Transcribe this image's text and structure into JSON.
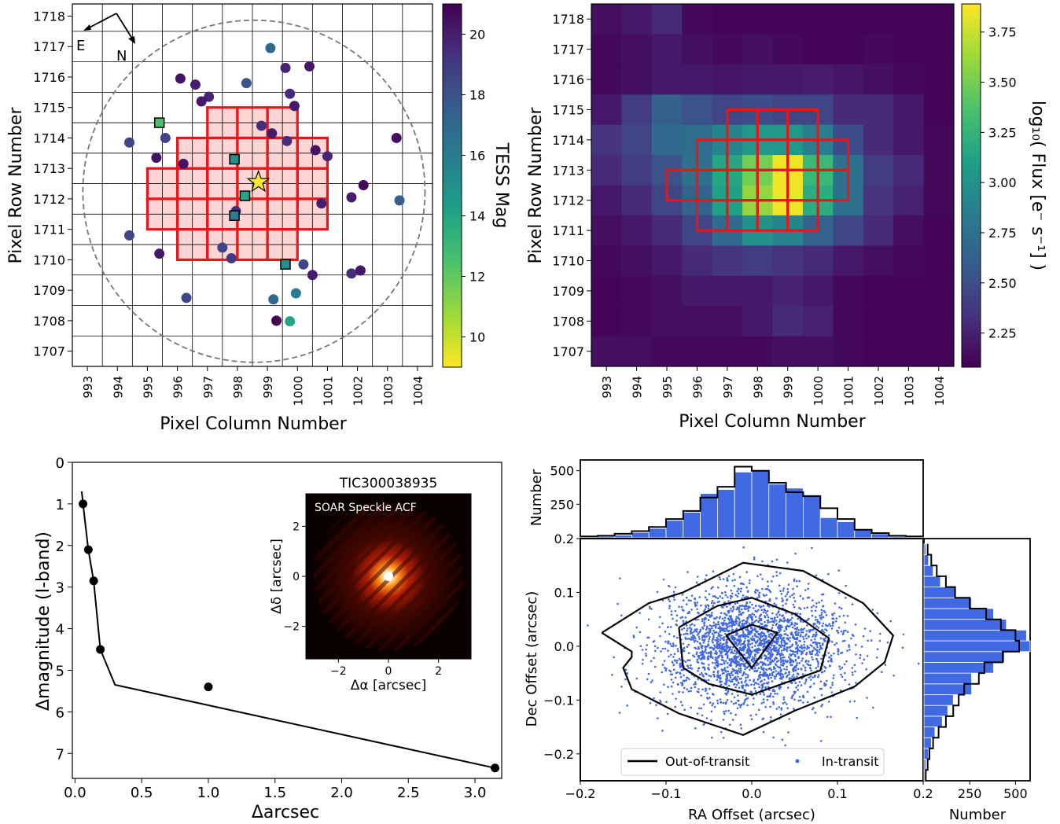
{
  "chart_data": [
    {
      "type": "scatter",
      "panel": "top-left",
      "xlabel": "Pixel Column Number",
      "ylabel": "Pixel Row Number",
      "xticks": [
        993,
        994,
        995,
        996,
        997,
        998,
        999,
        1000,
        1001,
        1002,
        1003,
        1004
      ],
      "yticks": [
        1707,
        1708,
        1709,
        1710,
        1711,
        1712,
        1713,
        1714,
        1715,
        1716,
        1717,
        1718
      ],
      "xlim": [
        992.5,
        1004.5
      ],
      "ylim": [
        1706.5,
        1718.4
      ],
      "grid": true,
      "compass": {
        "east_label": "E",
        "north_label": "N"
      },
      "colorbar": {
        "label": "TESS Mag",
        "ticks": [
          10,
          12,
          14,
          16,
          18,
          20
        ],
        "range": [
          9,
          21
        ],
        "reversed": true
      },
      "aperture_pixels": [
        [
          997.5,
          1714.5
        ],
        [
          998.5,
          1714.5
        ],
        [
          999.5,
          1714.5
        ],
        [
          996.5,
          1713.5
        ],
        [
          997.5,
          1713.5
        ],
        [
          998.5,
          1713.5
        ],
        [
          999.5,
          1713.5
        ],
        [
          1000.5,
          1713.5
        ],
        [
          995.5,
          1712.5
        ],
        [
          996.5,
          1712.5
        ],
        [
          997.5,
          1712.5
        ],
        [
          998.5,
          1712.5
        ],
        [
          999.5,
          1712.5
        ],
        [
          1000.5,
          1712.5
        ],
        [
          995.5,
          1711.5
        ],
        [
          996.5,
          1711.5
        ],
        [
          997.5,
          1711.5
        ],
        [
          998.5,
          1711.5
        ],
        [
          999.5,
          1711.5
        ],
        [
          1000.5,
          1711.5
        ],
        [
          996.5,
          1710.5
        ],
        [
          997.5,
          1710.5
        ],
        [
          998.5,
          1710.5
        ],
        [
          999.5,
          1710.5
        ]
      ],
      "target": {
        "x": 998.7,
        "y": 1712.55,
        "mag": 10
      },
      "search_circle": {
        "cx": 998.55,
        "cy": 1712.25,
        "radius": 5.7
      },
      "stars": [
        {
          "x": 999.1,
          "y": 1716.95,
          "mag": 17
        },
        {
          "x": 999.6,
          "y": 1716.3,
          "mag": 19.8
        },
        {
          "x": 1000.4,
          "y": 1716.35,
          "mag": 20.2
        },
        {
          "x": 996.1,
          "y": 1715.95,
          "mag": 20.4
        },
        {
          "x": 996.6,
          "y": 1715.75,
          "mag": 20
        },
        {
          "x": 997.05,
          "y": 1715.35,
          "mag": 19.8
        },
        {
          "x": 996.8,
          "y": 1715.2,
          "mag": 20.2
        },
        {
          "x": 998.3,
          "y": 1715.8,
          "mag": 18
        },
        {
          "x": 999.75,
          "y": 1715.45,
          "mag": 19.5
        },
        {
          "x": 999.9,
          "y": 1715.05,
          "mag": 20.2
        },
        {
          "x": 998.8,
          "y": 1714.4,
          "mag": 19.5
        },
        {
          "x": 999.15,
          "y": 1714.15,
          "mag": 20.2
        },
        {
          "x": 999.65,
          "y": 1713.9,
          "mag": 19.5
        },
        {
          "x": 1000.6,
          "y": 1713.6,
          "mag": 20.4
        },
        {
          "x": 1001.0,
          "y": 1713.4,
          "mag": 19.8
        },
        {
          "x": 995.6,
          "y": 1714.0,
          "mag": 18.5
        },
        {
          "x": 994.4,
          "y": 1713.85,
          "mag": 18.5
        },
        {
          "x": 995.3,
          "y": 1713.35,
          "mag": 20.4
        },
        {
          "x": 996.2,
          "y": 1713.15,
          "mag": 20.4
        },
        {
          "x": 1003.3,
          "y": 1714.0,
          "mag": 20.6
        },
        {
          "x": 1002.2,
          "y": 1712.45,
          "mag": 20.8
        },
        {
          "x": 1001.8,
          "y": 1712.05,
          "mag": 20
        },
        {
          "x": 1003.4,
          "y": 1711.95,
          "mag": 17.5
        },
        {
          "x": 1000.8,
          "y": 1711.85,
          "mag": 20
        },
        {
          "x": 997.95,
          "y": 1711.6,
          "mag": 19.5
        },
        {
          "x": 994.4,
          "y": 1710.8,
          "mag": 18.5
        },
        {
          "x": 995.4,
          "y": 1710.2,
          "mag": 20.2
        },
        {
          "x": 997.5,
          "y": 1710.4,
          "mag": 18.5
        },
        {
          "x": 997.8,
          "y": 1710.05,
          "mag": 19
        },
        {
          "x": 1000.2,
          "y": 1709.85,
          "mag": 18.5
        },
        {
          "x": 1000.5,
          "y": 1709.5,
          "mag": 20
        },
        {
          "x": 1001.8,
          "y": 1709.55,
          "mag": 19.5
        },
        {
          "x": 1002.1,
          "y": 1709.65,
          "mag": 20.2
        },
        {
          "x": 999.2,
          "y": 1708.7,
          "mag": 17
        },
        {
          "x": 999.95,
          "y": 1708.9,
          "mag": 16
        },
        {
          "x": 996.3,
          "y": 1708.75,
          "mag": 18.5
        },
        {
          "x": 999.3,
          "y": 1708.0,
          "mag": 21
        },
        {
          "x": 999.75,
          "y": 1707.98,
          "mag": 14
        }
      ],
      "square_stars": [
        {
          "x": 995.4,
          "y": 1714.5,
          "mag": 12.5
        },
        {
          "x": 997.9,
          "y": 1713.3,
          "mag": 15
        },
        {
          "x": 998.25,
          "y": 1712.1,
          "mag": 14
        },
        {
          "x": 997.9,
          "y": 1711.45,
          "mag": 16
        },
        {
          "x": 999.6,
          "y": 1709.85,
          "mag": 15
        }
      ]
    },
    {
      "type": "heatmap",
      "panel": "top-right",
      "xlabel": "Pixel Column Number",
      "ylabel": "Pixel Row Number",
      "xticks": [
        993,
        994,
        995,
        996,
        997,
        998,
        999,
        1000,
        1001,
        1002,
        1003,
        1004
      ],
      "yticks": [
        1707,
        1708,
        1709,
        1710,
        1711,
        1712,
        1713,
        1714,
        1715,
        1716,
        1717,
        1718
      ],
      "x_range": [
        992.5,
        1004.5
      ],
      "y_range": [
        1706.5,
        1718.5
      ],
      "colorbar": {
        "label": "log₁₀( Flux [e⁻ s⁻¹] )",
        "ticks": [
          2.25,
          2.5,
          2.75,
          3.0,
          3.25,
          3.5,
          3.75
        ],
        "ticklabels": [
          "2.25",
          "2.50",
          "2.75",
          "3.00",
          "3.25",
          "3.50",
          "3.75"
        ],
        "range": [
          2.08,
          3.89
        ]
      },
      "rows_top_to_bottom": [
        [
          2.15,
          2.2,
          2.3,
          2.12,
          2.1,
          2.1,
          2.1,
          2.1,
          2.1,
          2.1,
          2.1,
          2.1
        ],
        [
          2.12,
          2.15,
          2.2,
          2.15,
          2.12,
          2.15,
          2.12,
          2.1,
          2.1,
          2.12,
          2.1,
          2.1
        ],
        [
          2.12,
          2.15,
          2.2,
          2.2,
          2.18,
          2.2,
          2.2,
          2.22,
          2.18,
          2.15,
          2.12,
          2.1
        ],
        [
          2.2,
          2.4,
          2.62,
          2.55,
          2.45,
          2.5,
          2.45,
          2.45,
          2.3,
          2.3,
          2.2,
          2.1
        ],
        [
          2.35,
          2.45,
          2.7,
          2.72,
          2.9,
          3.05,
          3.05,
          2.85,
          2.5,
          2.3,
          2.2,
          2.12
        ],
        [
          2.3,
          2.4,
          2.55,
          2.75,
          3.15,
          3.5,
          3.85,
          3.3,
          2.75,
          2.4,
          2.3,
          2.12
        ],
        [
          2.2,
          2.3,
          2.45,
          2.65,
          3.1,
          3.6,
          3.85,
          3.2,
          2.75,
          2.35,
          2.25,
          2.12
        ],
        [
          2.15,
          2.2,
          2.3,
          2.45,
          2.7,
          3.0,
          2.9,
          2.65,
          2.45,
          2.3,
          2.15,
          2.1
        ],
        [
          2.12,
          2.15,
          2.2,
          2.3,
          2.35,
          2.4,
          2.35,
          2.3,
          2.2,
          2.15,
          2.12,
          2.1
        ],
        [
          2.1,
          2.12,
          2.15,
          2.2,
          2.2,
          2.2,
          2.25,
          2.2,
          2.12,
          2.1,
          2.1,
          2.1
        ],
        [
          2.1,
          2.12,
          2.15,
          2.15,
          2.15,
          2.2,
          2.3,
          2.25,
          2.12,
          2.1,
          2.1,
          2.1
        ],
        [
          2.15,
          2.15,
          2.12,
          2.12,
          2.12,
          2.12,
          2.15,
          2.15,
          2.12,
          2.1,
          2.1,
          2.1
        ]
      ],
      "aperture_pixels": [
        [
          997.5,
          1714.5
        ],
        [
          998.5,
          1714.5
        ],
        [
          999.5,
          1714.5
        ],
        [
          996.5,
          1713.5
        ],
        [
          997.5,
          1713.5
        ],
        [
          998.5,
          1713.5
        ],
        [
          999.5,
          1713.5
        ],
        [
          1000.5,
          1713.5
        ],
        [
          995.5,
          1712.5
        ],
        [
          996.5,
          1712.5
        ],
        [
          997.5,
          1712.5
        ],
        [
          998.5,
          1712.5
        ],
        [
          999.5,
          1712.5
        ],
        [
          1000.5,
          1712.5
        ],
        [
          996.5,
          1711.5
        ],
        [
          997.5,
          1711.5
        ],
        [
          998.5,
          1711.5
        ],
        [
          999.5,
          1711.5
        ]
      ]
    },
    {
      "type": "line",
      "panel": "bottom-left",
      "xlabel": "Δarcsec",
      "ylabel": "Δmagnitude (I-band)",
      "xticks": [
        0.0,
        0.5,
        1.0,
        1.5,
        2.0,
        2.5,
        3.0
      ],
      "xticklabels": [
        "0.0",
        "0.5",
        "1.0",
        "1.5",
        "2.0",
        "2.5",
        "3.0"
      ],
      "yticks": [
        0,
        1,
        2,
        3,
        4,
        5,
        6,
        7
      ],
      "xlim": [
        -0.02,
        3.2
      ],
      "ylim": [
        7.6,
        0
      ],
      "curve": {
        "x": [
          0.05,
          0.06,
          0.1,
          0.14,
          0.19,
          0.3,
          3.15
        ],
        "y": [
          0.7,
          1.0,
          2.1,
          2.85,
          4.5,
          5.35,
          7.35
        ]
      },
      "points": {
        "x": [
          0.06,
          0.1,
          0.14,
          0.19,
          1.0,
          3.15
        ],
        "y": [
          1.0,
          2.1,
          2.85,
          4.5,
          5.4,
          7.35
        ]
      },
      "inset": {
        "title": "TIC300038935",
        "label": "SOAR Speckle ACF",
        "xlabel": "Δα [arcsec]",
        "ylabel": "Δδ [arcsec]",
        "ticks": [
          -2,
          0,
          2
        ],
        "range": [
          -3.3,
          3.3
        ]
      }
    },
    {
      "type": "scatter",
      "panel": "bottom-right",
      "xlabel": "RA Offset (arcsec)",
      "ylabel": "Dec Offset (arcsec)",
      "xticks": [
        -0.2,
        -0.1,
        0.0,
        0.1,
        0.2
      ],
      "xticklabels": [
        "−0.2",
        "−0.1",
        "0.0",
        "0.1",
        "0.2"
      ],
      "yticks": [
        -0.2,
        -0.1,
        0.0,
        0.1,
        0.2
      ],
      "yticklabels": [
        "−0.2",
        "−0.1",
        "0.0",
        "0.1",
        "0.2"
      ],
      "xlim": [
        -0.2,
        0.2
      ],
      "ylim": [
        -0.25,
        0.2
      ],
      "legend": {
        "location": "bottom-center",
        "entries": [
          {
            "label": "Out-of-transit",
            "style": "line"
          },
          {
            "label": "In-transit",
            "style": "point"
          }
        ]
      },
      "in_transit_scatter": {
        "center": [
          0.0,
          0.0
        ],
        "sigma_ra": 0.055,
        "sigma_dec": 0.055,
        "count": 2600
      },
      "contours_out_of_transit": [
        {
          "x": [
            -0.03,
            0.0,
            0.03,
            0.0,
            -0.03
          ],
          "y": [
            0.02,
            0.04,
            0.025,
            -0.04,
            0.02
          ]
        },
        {
          "x": [
            -0.085,
            -0.04,
            0.0,
            0.05,
            0.09,
            0.08,
            0.0,
            -0.05,
            -0.08,
            -0.085
          ],
          "y": [
            0.035,
            0.075,
            0.09,
            0.06,
            0.015,
            -0.045,
            -0.09,
            -0.07,
            -0.04,
            0.035
          ]
        },
        {
          "x": [
            -0.175,
            -0.12,
            -0.08,
            -0.01,
            0.06,
            0.13,
            0.165,
            0.155,
            0.12,
            0.05,
            -0.01,
            -0.085,
            -0.14,
            -0.15,
            -0.14,
            -0.14,
            -0.175
          ],
          "y": [
            0.025,
            0.08,
            0.1,
            0.155,
            0.14,
            0.08,
            0.02,
            -0.03,
            -0.075,
            -0.12,
            -0.165,
            -0.125,
            -0.08,
            -0.04,
            -0.02,
            -0.01,
            0.025
          ]
        }
      ],
      "hist_top": {
        "ylabel": "Number",
        "yticks": [
          250,
          500
        ],
        "ylim": [
          0,
          580
        ],
        "bin_edges": [
          -0.2,
          -0.18,
          -0.16,
          -0.14,
          -0.12,
          -0.1,
          -0.08,
          -0.06,
          -0.04,
          -0.02,
          0.0,
          0.02,
          0.04,
          0.06,
          0.08,
          0.1,
          0.12,
          0.14,
          0.16,
          0.18,
          0.2
        ],
        "in_transit": [
          5,
          10,
          20,
          40,
          70,
          130,
          190,
          330,
          360,
          490,
          500,
          400,
          370,
          320,
          150,
          120,
          60,
          30,
          10,
          5
        ],
        "out_of_transit": [
          10,
          15,
          30,
          50,
          80,
          140,
          200,
          300,
          380,
          530,
          500,
          410,
          340,
          310,
          220,
          140,
          60,
          35,
          15,
          10
        ]
      },
      "hist_right": {
        "xlabel": "Number",
        "xticks": [
          250,
          500
        ],
        "xlim": [
          0,
          580
        ],
        "bin_edges": [
          -0.25,
          -0.23,
          -0.21,
          -0.19,
          -0.17,
          -0.15,
          -0.13,
          -0.11,
          -0.09,
          -0.07,
          -0.05,
          -0.03,
          -0.01,
          0.01,
          0.03,
          0.05,
          0.07,
          0.09,
          0.11,
          0.13,
          0.15,
          0.17,
          0.19
        ],
        "in_transit": [
          5,
          10,
          25,
          40,
          60,
          100,
          130,
          160,
          260,
          260,
          380,
          440,
          580,
          560,
          450,
          380,
          260,
          170,
          90,
          50,
          25,
          10
        ],
        "out_of_transit": [
          10,
          20,
          30,
          50,
          80,
          120,
          160,
          190,
          220,
          300,
          330,
          430,
          520,
          500,
          420,
          340,
          250,
          170,
          120,
          70,
          40,
          20
        ]
      }
    }
  ]
}
